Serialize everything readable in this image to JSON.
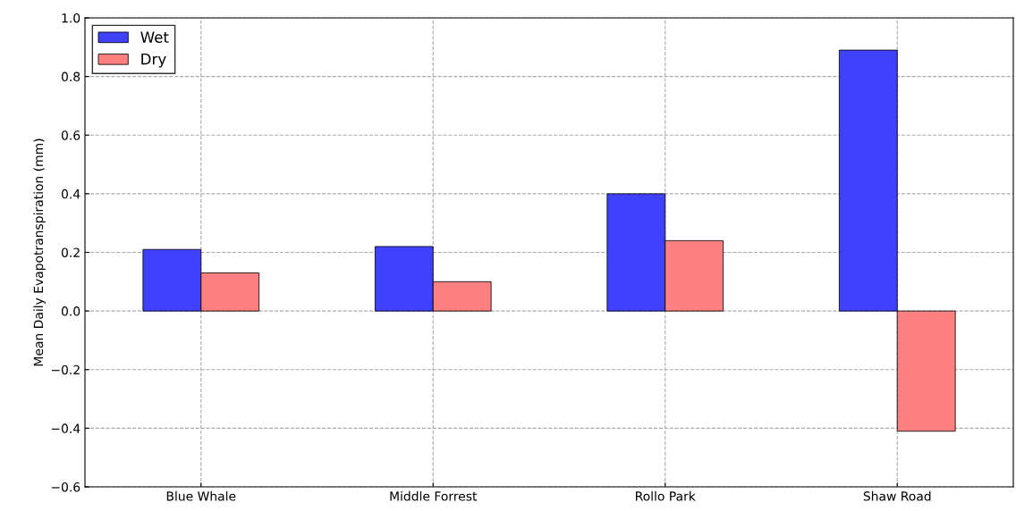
{
  "chart_data": {
    "type": "bar",
    "ylabel": "Mean Daily Evapotranspiration (mm)",
    "categories": [
      "Blue Whale",
      "Middle Forrest",
      "Rollo Park",
      "Shaw Road"
    ],
    "series": [
      {
        "name": "Wet",
        "color": "#4040ff",
        "values": [
          0.21,
          0.22,
          0.4,
          0.89
        ]
      },
      {
        "name": "Dry",
        "color": "#ff8080",
        "values": [
          0.13,
          0.1,
          0.24,
          -0.41
        ]
      }
    ],
    "ylim": [
      -0.6,
      1.0
    ],
    "yticks": [
      {
        "value": -0.6,
        "label": "−0.6"
      },
      {
        "value": -0.4,
        "label": "−0.4"
      },
      {
        "value": -0.2,
        "label": "−0.2"
      },
      {
        "value": 0,
        "label": "0.0"
      },
      {
        "value": 0.2,
        "label": "0.2"
      },
      {
        "value": 0.4,
        "label": "0.4"
      },
      {
        "value": 0.6,
        "label": "0.6"
      },
      {
        "value": 0.8,
        "label": "0.8"
      },
      {
        "value": 1.0,
        "label": "1.0"
      }
    ],
    "grid": true,
    "legend": "top left"
  }
}
